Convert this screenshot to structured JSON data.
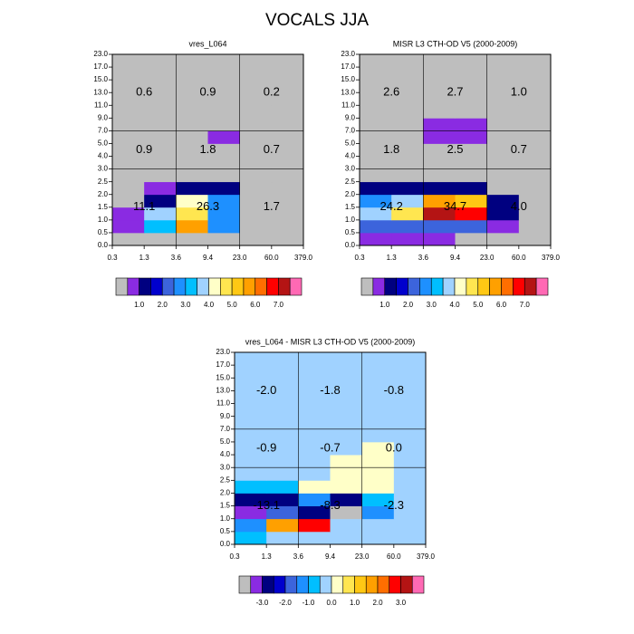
{
  "title": "VOCALS JJA",
  "chart_data": [
    {
      "type": "heatmap",
      "title": "vres_L064",
      "xticks": [
        0.3,
        1.3,
        3.6,
        9.4,
        {
          "value": 23,
          "label": "23.0"
        },
        {
          "value": 60,
          "label": "60.0"
        },
        {
          "value": 379,
          "label": "379.0"
        }
      ],
      "yticks": [
        {
          "value": 0,
          "label": "0.0"
        },
        0.5,
        {
          "value": 1,
          "label": "1.0"
        },
        1.5,
        {
          "value": 2,
          "label": "2.0"
        },
        2.5,
        {
          "value": 3,
          "label": "3.0"
        },
        {
          "value": 4,
          "label": "4.0"
        },
        {
          "value": 5,
          "label": "5.0"
        },
        {
          "value": 7,
          "label": "7.0"
        },
        {
          "value": 9,
          "label": "9.0"
        },
        {
          "value": 11,
          "label": "11.0"
        },
        {
          "value": 13,
          "label": "13.0"
        },
        {
          "value": 15,
          "label": "15.0"
        },
        {
          "value": 17,
          "label": "17.0"
        },
        {
          "value": 23,
          "label": "23.0"
        }
      ],
      "z": [
        [
          0,
          0,
          0,
          0,
          0,
          0
        ],
        [
          0.7,
          3.2,
          5.7,
          2.7,
          0,
          0
        ],
        [
          0.7,
          3.7,
          4.7,
          2.7,
          0,
          0
        ],
        [
          0,
          1.2,
          4.2,
          2.7,
          0,
          0
        ],
        [
          0,
          0.7,
          1.2,
          1.2,
          0,
          0
        ],
        [
          0,
          0,
          0,
          0,
          0,
          0
        ],
        [
          0,
          0,
          0,
          0,
          0,
          0
        ],
        [
          0,
          0,
          0,
          0,
          0,
          0
        ],
        [
          0,
          0,
          0,
          0.7,
          0,
          0
        ],
        [
          0,
          0,
          0,
          0,
          0,
          0
        ],
        [
          0,
          0,
          0,
          0,
          0,
          0
        ],
        [
          0,
          0,
          0,
          0,
          0,
          0
        ],
        [
          0,
          0,
          0,
          0,
          0,
          0
        ],
        [
          0,
          0,
          0,
          0,
          0,
          0
        ],
        [
          0,
          0,
          0,
          0,
          0,
          0
        ]
      ],
      "annotations": [
        [
          "0.6",
          "0.9",
          "0.2"
        ],
        [
          "0.9",
          "1.8",
          "0.7"
        ],
        [
          "11.1",
          "26.3",
          "1.7"
        ]
      ],
      "dividers": {
        "x": [
          3.6,
          23
        ],
        "y": [
          3,
          7
        ]
      },
      "colorbar": {
        "levels": [
          0.5,
          1,
          1.5,
          2,
          2.5,
          3,
          3.5,
          4,
          4.5,
          5,
          5.5,
          6,
          6.5,
          7,
          7.5
        ],
        "colors": [
          "#bebebe",
          "#8a2be2",
          "#000080",
          "#0000cd",
          "#3c64dc",
          "#1e90ff",
          "#00bfff",
          "#a0d2ff",
          "#ffffc8",
          "#ffe650",
          "#ffc814",
          "#ffa000",
          "#ff6e00",
          "#ff0000",
          "#b41414",
          "#ff69b4"
        ],
        "ticks": [
          {
            "value": 1,
            "label": "1.0"
          },
          {
            "value": 2,
            "label": "2.0"
          },
          {
            "value": 3,
            "label": "3.0"
          },
          {
            "value": 4,
            "label": "4.0"
          },
          {
            "value": 5,
            "label": "5.0"
          },
          {
            "value": 6,
            "label": "6.0"
          },
          {
            "value": 7,
            "label": "7.0"
          }
        ]
      }
    },
    {
      "type": "heatmap",
      "title": "MISR L3 CTH-OD V5 (2000-2009)",
      "xticks": [
        0.3,
        1.3,
        3.6,
        9.4,
        {
          "value": 23,
          "label": "23.0"
        },
        {
          "value": 60,
          "label": "60.0"
        },
        {
          "value": 379,
          "label": "379.0"
        }
      ],
      "yticks": [
        {
          "value": 0,
          "label": "0.0"
        },
        0.5,
        {
          "value": 1,
          "label": "1.0"
        },
        1.5,
        {
          "value": 2,
          "label": "2.0"
        },
        2.5,
        {
          "value": 3,
          "label": "3.0"
        },
        {
          "value": 4,
          "label": "4.0"
        },
        {
          "value": 5,
          "label": "5.0"
        },
        {
          "value": 7,
          "label": "7.0"
        },
        {
          "value": 9,
          "label": "9.0"
        },
        {
          "value": 11,
          "label": "11.0"
        },
        {
          "value": 13,
          "label": "13.0"
        },
        {
          "value": 15,
          "label": "15.0"
        },
        {
          "value": 17,
          "label": "17.0"
        },
        {
          "value": 23,
          "label": "23.0"
        }
      ],
      "z": [
        [
          0.7,
          0.7,
          0.7,
          0,
          0,
          0
        ],
        [
          2.2,
          2.2,
          2.2,
          2.2,
          0.7,
          0
        ],
        [
          3.7,
          4.7,
          7.2,
          6.7,
          1.2,
          0
        ],
        [
          2.7,
          3.7,
          5.7,
          5.2,
          1.2,
          0
        ],
        [
          1.2,
          1.2,
          1.2,
          1.2,
          0,
          0
        ],
        [
          0,
          0,
          0,
          0,
          0,
          0
        ],
        [
          0,
          0,
          0,
          0,
          0,
          0
        ],
        [
          0,
          0,
          0,
          0,
          0,
          0
        ],
        [
          0,
          0,
          0.7,
          0.7,
          0,
          0
        ],
        [
          0,
          0,
          0.7,
          0.7,
          0,
          0
        ],
        [
          0,
          0,
          0,
          0,
          0,
          0
        ],
        [
          0,
          0,
          0,
          0,
          0,
          0
        ],
        [
          0,
          0,
          0,
          0,
          0,
          0
        ],
        [
          0,
          0,
          0,
          0,
          0,
          0
        ],
        [
          0,
          0,
          0,
          0,
          0,
          0
        ]
      ],
      "annotations": [
        [
          "2.6",
          "2.7",
          "1.0"
        ],
        [
          "1.8",
          "2.5",
          "0.7"
        ],
        [
          "24.2",
          "34.7",
          "4.0"
        ]
      ],
      "dividers": {
        "x": [
          3.6,
          23
        ],
        "y": [
          3,
          7
        ]
      },
      "colorbar": {
        "levels": [
          0.5,
          1,
          1.5,
          2,
          2.5,
          3,
          3.5,
          4,
          4.5,
          5,
          5.5,
          6,
          6.5,
          7,
          7.5
        ],
        "colors": [
          "#bebebe",
          "#8a2be2",
          "#000080",
          "#0000cd",
          "#3c64dc",
          "#1e90ff",
          "#00bfff",
          "#a0d2ff",
          "#ffffc8",
          "#ffe650",
          "#ffc814",
          "#ffa000",
          "#ff6e00",
          "#ff0000",
          "#b41414",
          "#ff69b4"
        ],
        "ticks": [
          {
            "value": 1,
            "label": "1.0"
          },
          {
            "value": 2,
            "label": "2.0"
          },
          {
            "value": 3,
            "label": "3.0"
          },
          {
            "value": 4,
            "label": "4.0"
          },
          {
            "value": 5,
            "label": "5.0"
          },
          {
            "value": 6,
            "label": "6.0"
          },
          {
            "value": 7,
            "label": "7.0"
          }
        ]
      }
    },
    {
      "type": "heatmap",
      "title": "vres_L064 - MISR L3 CTH-OD V5 (2000-2009)",
      "xticks": [
        0.3,
        1.3,
        3.6,
        9.4,
        {
          "value": 23,
          "label": "23.0"
        },
        {
          "value": 60,
          "label": "60.0"
        },
        {
          "value": 379,
          "label": "379.0"
        }
      ],
      "yticks": [
        {
          "value": 0,
          "label": "0.0"
        },
        0.5,
        {
          "value": 1,
          "label": "1.0"
        },
        1.5,
        {
          "value": 2,
          "label": "2.0"
        },
        2.5,
        {
          "value": 3,
          "label": "3.0"
        },
        {
          "value": 4,
          "label": "4.0"
        },
        {
          "value": 5,
          "label": "5.0"
        },
        {
          "value": 7,
          "label": "7.0"
        },
        {
          "value": 9,
          "label": "9.0"
        },
        {
          "value": 11,
          "label": "11.0"
        },
        {
          "value": 13,
          "label": "13.0"
        },
        {
          "value": 15,
          "label": "15.0"
        },
        {
          "value": 17,
          "label": "17.0"
        },
        {
          "value": 23,
          "label": "23.0"
        }
      ],
      "z": [
        [
          -0.7,
          -0.2,
          -0.2,
          -0.2,
          -0.2,
          -0.2
        ],
        [
          -1.2,
          1.7,
          2.7,
          -0.2,
          -0.2,
          -0.2
        ],
        [
          -3.2,
          -1.7,
          -2.7,
          null,
          -1.2,
          -0.2
        ],
        [
          -2.7,
          -2.7,
          -1.2,
          -2.7,
          -0.7,
          -0.2
        ],
        [
          -0.7,
          -0.7,
          0.2,
          0.2,
          0.2,
          -0.2
        ],
        [
          -0.2,
          -0.2,
          -0.2,
          0.2,
          0.2,
          -0.2
        ],
        [
          -0.2,
          -0.2,
          -0.2,
          0.2,
          0.2,
          -0.2
        ],
        [
          -0.2,
          -0.2,
          -0.2,
          -0.2,
          0.2,
          -0.2
        ],
        [
          -0.2,
          -0.2,
          -0.2,
          -0.2,
          -0.2,
          -0.2
        ],
        [
          -0.2,
          -0.2,
          -0.2,
          -0.2,
          -0.2,
          -0.2
        ],
        [
          -0.2,
          -0.2,
          -0.2,
          -0.2,
          -0.2,
          -0.2
        ],
        [
          -0.2,
          -0.2,
          -0.2,
          -0.2,
          -0.2,
          -0.2
        ],
        [
          -0.2,
          -0.2,
          -0.2,
          -0.2,
          -0.2,
          -0.2
        ],
        [
          -0.2,
          -0.2,
          -0.2,
          -0.2,
          -0.2,
          -0.2
        ],
        [
          -0.2,
          -0.2,
          -0.2,
          -0.2,
          -0.2,
          -0.2
        ]
      ],
      "annotations": [
        [
          "-2.0",
          "-1.8",
          "-0.8"
        ],
        [
          "-0.9",
          "-0.7",
          "0.0"
        ],
        [
          "-13.1",
          "-8.3",
          "-2.3"
        ]
      ],
      "dividers": {
        "x": [
          3.6,
          23
        ],
        "y": [
          3,
          7
        ]
      },
      "colorbar": {
        "levels": [
          -3.5,
          -3,
          -2.5,
          -2,
          -1.5,
          -1,
          -0.5,
          0,
          0.5,
          1,
          1.5,
          2,
          2.5,
          3,
          3.5
        ],
        "colors": [
          "#bebebe",
          "#8a2be2",
          "#000080",
          "#0000cd",
          "#3c64dc",
          "#1e90ff",
          "#00bfff",
          "#a0d2ff",
          "#ffffc8",
          "#ffe650",
          "#ffc814",
          "#ffa000",
          "#ff6e00",
          "#ff0000",
          "#b41414",
          "#ff69b4"
        ],
        "ticks": [
          {
            "value": -3,
            "label": "-3.0"
          },
          {
            "value": -2,
            "label": "-2.0"
          },
          {
            "value": -1,
            "label": "-1.0"
          },
          {
            "value": 0,
            "label": "0.0"
          },
          {
            "value": 1,
            "label": "1.0"
          },
          {
            "value": 2,
            "label": "2.0"
          },
          {
            "value": 3,
            "label": "3.0"
          }
        ]
      }
    }
  ]
}
